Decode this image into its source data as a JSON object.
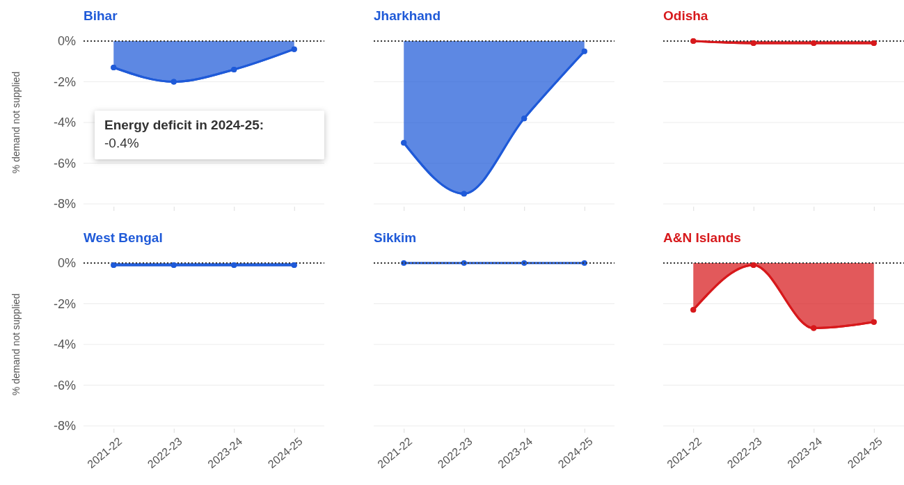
{
  "chart_data": [
    {
      "type": "area",
      "title": "Bihar",
      "ylabel": "% demand not supplied",
      "categories": [
        "2021-22",
        "2022-23",
        "2023-24",
        "2024-25"
      ],
      "series": [
        {
          "color": "#1f5ad8",
          "values": [
            -1.3,
            -2.0,
            -1.4,
            -0.4
          ]
        }
      ],
      "ylim": [
        -8,
        0
      ],
      "yticks": [
        {
          "value": 0,
          "label": "0%"
        },
        {
          "value": -2,
          "label": "-2%"
        },
        {
          "value": -4,
          "label": "-4%"
        },
        {
          "value": -6,
          "label": "-6%"
        },
        {
          "value": -8,
          "label": "-8%"
        }
      ],
      "grid": "y",
      "marker": "circle",
      "tick_labels": "y",
      "ref_lines": [
        {
          "axis": "y",
          "value": 0,
          "color": "#333333",
          "line_style": "dotted"
        }
      ],
      "annotations": [
        "Energy deficit in 2024-25:\n-0.4%"
      ]
    },
    {
      "type": "area",
      "title": "Jharkhand",
      "categories": [
        "2021-22",
        "2022-23",
        "2023-24",
        "2024-25"
      ],
      "series": [
        {
          "color": "#1f5ad8",
          "values": [
            -5.0,
            -7.5,
            -3.8,
            -0.5
          ]
        }
      ],
      "ylim": [
        -8,
        0
      ],
      "yticks": [
        {
          "value": 0,
          "label": null
        },
        {
          "value": -2,
          "label": null
        },
        {
          "value": -4,
          "label": null
        },
        {
          "value": -6,
          "label": null
        },
        {
          "value": -8,
          "label": null
        }
      ],
      "grid": "y",
      "marker": "circle",
      "tick_labels": false,
      "ref_lines": [
        {
          "axis": "y",
          "value": 0,
          "color": "#333333",
          "line_style": "dotted"
        }
      ]
    },
    {
      "type": "area",
      "title": "Odisha",
      "categories": [
        "2021-22",
        "2022-23",
        "2023-24",
        "2024-25"
      ],
      "series": [
        {
          "color": "#d7191c",
          "values": [
            0.0,
            -0.1,
            -0.1,
            -0.1
          ]
        }
      ],
      "ylim": [
        -8,
        0
      ],
      "yticks": [
        {
          "value": 0,
          "label": null
        },
        {
          "value": -2,
          "label": null
        },
        {
          "value": -4,
          "label": null
        },
        {
          "value": -6,
          "label": null
        },
        {
          "value": -8,
          "label": null
        }
      ],
      "grid": "y",
      "marker": "circle",
      "tick_labels": false,
      "ref_lines": [
        {
          "axis": "y",
          "value": 0,
          "color": "#333333",
          "line_style": "dotted"
        }
      ]
    },
    {
      "type": "area",
      "title": "West Bengal",
      "ylabel": "% demand not supplied",
      "categories": [
        "2021-22",
        "2022-23",
        "2023-24",
        "2024-25"
      ],
      "series": [
        {
          "color": "#1f5ad8",
          "values": [
            -0.1,
            -0.1,
            -0.1,
            -0.1
          ]
        }
      ],
      "ylim": [
        -8,
        0
      ],
      "yticks": [
        {
          "value": 0,
          "label": "0%"
        },
        {
          "value": -2,
          "label": "-2%"
        },
        {
          "value": -4,
          "label": "-4%"
        },
        {
          "value": -6,
          "label": "-6%"
        },
        {
          "value": -8,
          "label": "-8%"
        }
      ],
      "grid": "y",
      "marker": "circle",
      "ref_lines": [
        {
          "axis": "y",
          "value": 0,
          "color": "#333333",
          "line_style": "dotted"
        }
      ]
    },
    {
      "type": "line",
      "title": "Sikkim",
      "categories": [
        "2021-22",
        "2022-23",
        "2023-24",
        "2024-25"
      ],
      "series": [
        {
          "color": "#1f5ad8",
          "values": [
            0.0,
            0.0,
            0.0,
            0.0
          ]
        }
      ],
      "ylim": [
        -8,
        0
      ],
      "yticks": [
        {
          "value": 0,
          "label": null
        },
        {
          "value": -2,
          "label": null
        },
        {
          "value": -4,
          "label": null
        },
        {
          "value": -6,
          "label": null
        },
        {
          "value": -8,
          "label": null
        }
      ],
      "grid": "y",
      "marker": "circle",
      "tick_labels": "x",
      "ref_lines": [
        {
          "axis": "y",
          "value": 0,
          "color": "#333333",
          "line_style": "dotted"
        }
      ]
    },
    {
      "type": "area",
      "title": "A&N Islands",
      "categories": [
        "2021-22",
        "2022-23",
        "2023-24",
        "2024-25"
      ],
      "series": [
        {
          "color": "#d7191c",
          "values": [
            -2.3,
            -0.1,
            -3.2,
            -2.9
          ]
        }
      ],
      "ylim": [
        -8,
        0
      ],
      "yticks": [
        {
          "value": 0,
          "label": null
        },
        {
          "value": -2,
          "label": null
        },
        {
          "value": -4,
          "label": null
        },
        {
          "value": -6,
          "label": null
        },
        {
          "value": -8,
          "label": null
        }
      ],
      "grid": "y",
      "marker": "circle",
      "tick_labels": "x",
      "ref_lines": [
        {
          "axis": "y",
          "value": 0,
          "color": "#333333",
          "line_style": "dotted"
        }
      ]
    }
  ]
}
